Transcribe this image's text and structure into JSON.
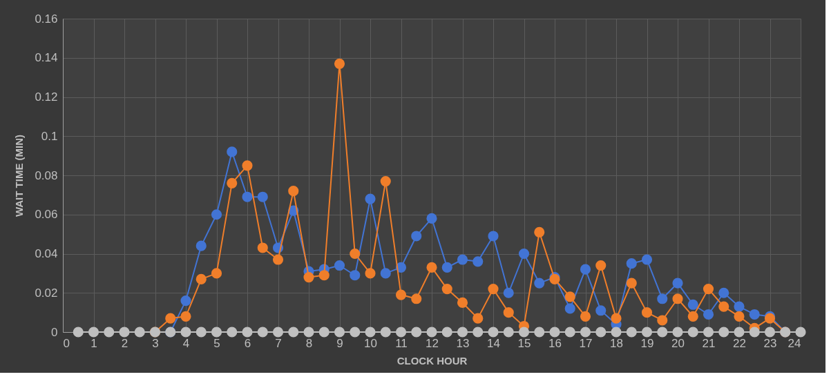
{
  "chart_data": {
    "type": "line",
    "xlabel": "CLOCK HOUR",
    "ylabel": "WAIT TIME (MIN)",
    "x": [
      0.5,
      1,
      1.5,
      2,
      2.5,
      3,
      3.5,
      4,
      4.5,
      5,
      5.5,
      6,
      6.5,
      7,
      7.5,
      8,
      8.5,
      9,
      9.5,
      10,
      10.5,
      11,
      11.5,
      12,
      12.5,
      13,
      13.5,
      14,
      14.5,
      15,
      15.5,
      16,
      16.5,
      17,
      17.5,
      18,
      18.5,
      19,
      19.5,
      20,
      20.5,
      21,
      21.5,
      22,
      22.5,
      23,
      23.5,
      24
    ],
    "series": [
      {
        "color": "#4274d4",
        "values": [
          null,
          null,
          null,
          null,
          null,
          null,
          0,
          0.016,
          0.044,
          0.06,
          0.092,
          0.069,
          0.069,
          0.043,
          0.062,
          0.031,
          0.032,
          0.034,
          0.029,
          0.068,
          0.03,
          0.033,
          0.049,
          0.058,
          0.033,
          0.037,
          0.036,
          0.049,
          0.02,
          0.04,
          0.025,
          0.028,
          0.012,
          0.032,
          0.011,
          0.004,
          0.035,
          0.037,
          0.017,
          0.025,
          0.014,
          0.009,
          0.02,
          0.013,
          0.009,
          0.008,
          0,
          null
        ]
      },
      {
        "color": "#f07e2a",
        "values": [
          null,
          null,
          null,
          null,
          null,
          0,
          0.007,
          0.008,
          0.027,
          0.03,
          0.076,
          0.085,
          0.043,
          0.037,
          0.072,
          0.028,
          0.029,
          0.137,
          0.04,
          0.03,
          0.077,
          0.019,
          0.017,
          0.033,
          0.022,
          0.015,
          0.007,
          0.022,
          0.01,
          0.003,
          0.051,
          0.027,
          0.018,
          0.008,
          0.034,
          0.007,
          0.025,
          0.01,
          0.006,
          0.017,
          0.008,
          0.022,
          0.013,
          0.008,
          0.002,
          0.007,
          0,
          null
        ]
      },
      {
        "color": "#bfbfbf",
        "values": [
          0,
          0,
          0,
          0,
          0,
          0,
          0,
          0,
          0,
          0,
          0,
          0,
          0,
          0,
          0,
          0,
          0,
          0,
          0,
          0,
          0,
          0,
          0,
          0,
          0,
          0,
          0,
          0,
          0,
          0,
          0,
          0,
          0,
          0,
          0,
          0,
          0,
          0,
          0,
          0,
          0,
          0,
          0,
          0,
          0,
          0,
          0,
          0
        ]
      }
    ],
    "xlim": [
      0,
      24
    ],
    "xticks": [
      0,
      1,
      2,
      3,
      4,
      5,
      6,
      7,
      8,
      9,
      10,
      11,
      12,
      13,
      14,
      15,
      16,
      17,
      18,
      19,
      20,
      21,
      22,
      23,
      24
    ],
    "ylim": [
      0,
      0.16
    ],
    "yticks": [
      0,
      0.02,
      0.04,
      0.06,
      0.08,
      0.1,
      0.12,
      0.14,
      0.16
    ],
    "grid": true,
    "legend": false,
    "marker": "circle",
    "line_style": "solid"
  }
}
